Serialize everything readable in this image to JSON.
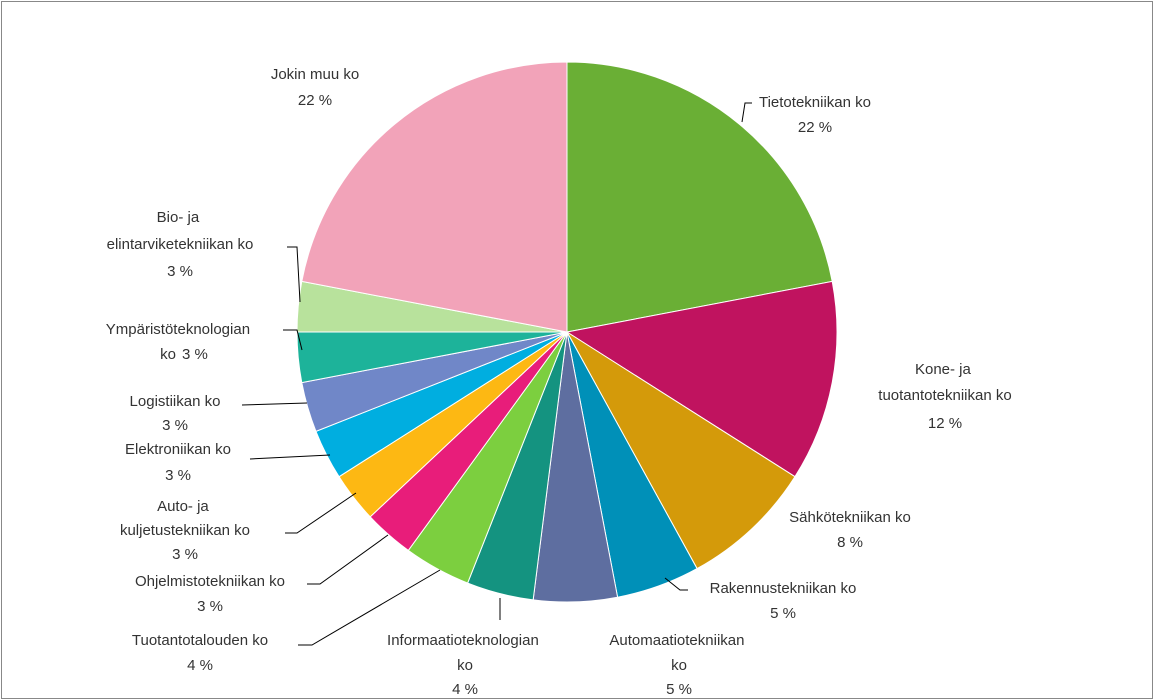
{
  "chart_data": {
    "type": "pie",
    "categories": [
      "Tietotekniikan ko",
      "Kone- ja tuotantotekniikan ko",
      "Sähkötekniikan ko",
      "Rakennustekniikan ko",
      "Automaatiotekniikan ko",
      "Informaatioteknologian ko",
      "Tuotantotalouden ko",
      "Ohjelmistotekniikan ko",
      "Auto- ja kuljetustekniikan ko",
      "Elektroniikan ko",
      "Logistiikan ko",
      "Ympäristöteknologian ko",
      "Bio- ja elintarviketekniikan ko",
      "Jokin muu ko"
    ],
    "values": [
      22,
      12,
      8,
      5,
      5,
      4,
      4,
      3,
      3,
      3,
      3,
      3,
      3,
      22
    ],
    "value_labels": [
      "22 %",
      "12 %",
      "8 %",
      "5 %",
      "5 %",
      "4 %",
      "4 %",
      "3 %",
      "3 %",
      "3 %",
      "3 %",
      "3 %",
      "3 %",
      "22 %"
    ],
    "colors": [
      "#6aaf35",
      "#c0135f",
      "#d49a0a",
      "#0090b8",
      "#5e6ea0",
      "#149380",
      "#7ccf3f",
      "#e81d7a",
      "#fdb813",
      "#00aee0",
      "#7087c8",
      "#1db39a",
      "#b8e29c",
      "#f2a3b9"
    ]
  }
}
